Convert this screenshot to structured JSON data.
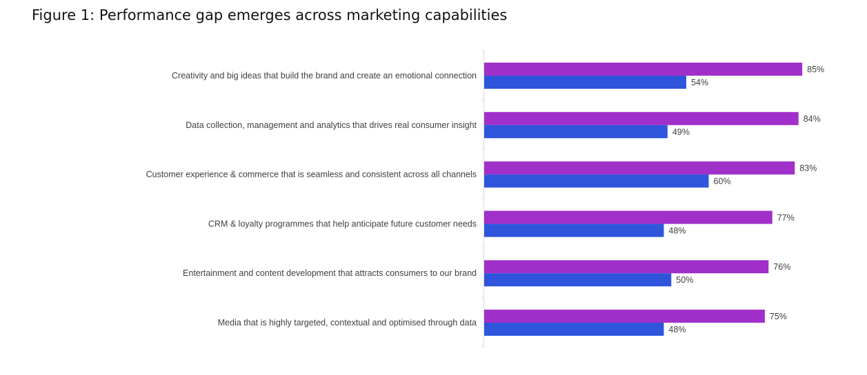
{
  "chart_data": {
    "type": "bar",
    "orientation": "horizontal",
    "title": "Figure 1: Performance gap emerges across marketing capabilities",
    "categories": [
      "Creativity and big ideas that build the brand and create an emotional connection",
      "Data collection, management and analytics that drives real consumer insight",
      "Customer experience & commerce that is seamless and consistent across all channels",
      "CRM & loyalty programmes that help anticipate future customer needs",
      "Entertainment and content development that attracts consumers to our brand",
      "Media that is highly targeted, contextual and optimised through data"
    ],
    "series": [
      {
        "values": [
          85,
          84,
          83,
          77,
          76,
          75
        ],
        "color": "#a12fc9"
      },
      {
        "values": [
          54,
          49,
          60,
          48,
          50,
          48
        ],
        "color": "#2f55dc"
      }
    ],
    "value_suffix": "%",
    "xlim": [
      0,
      100
    ],
    "grid": false,
    "legend": "none"
  }
}
